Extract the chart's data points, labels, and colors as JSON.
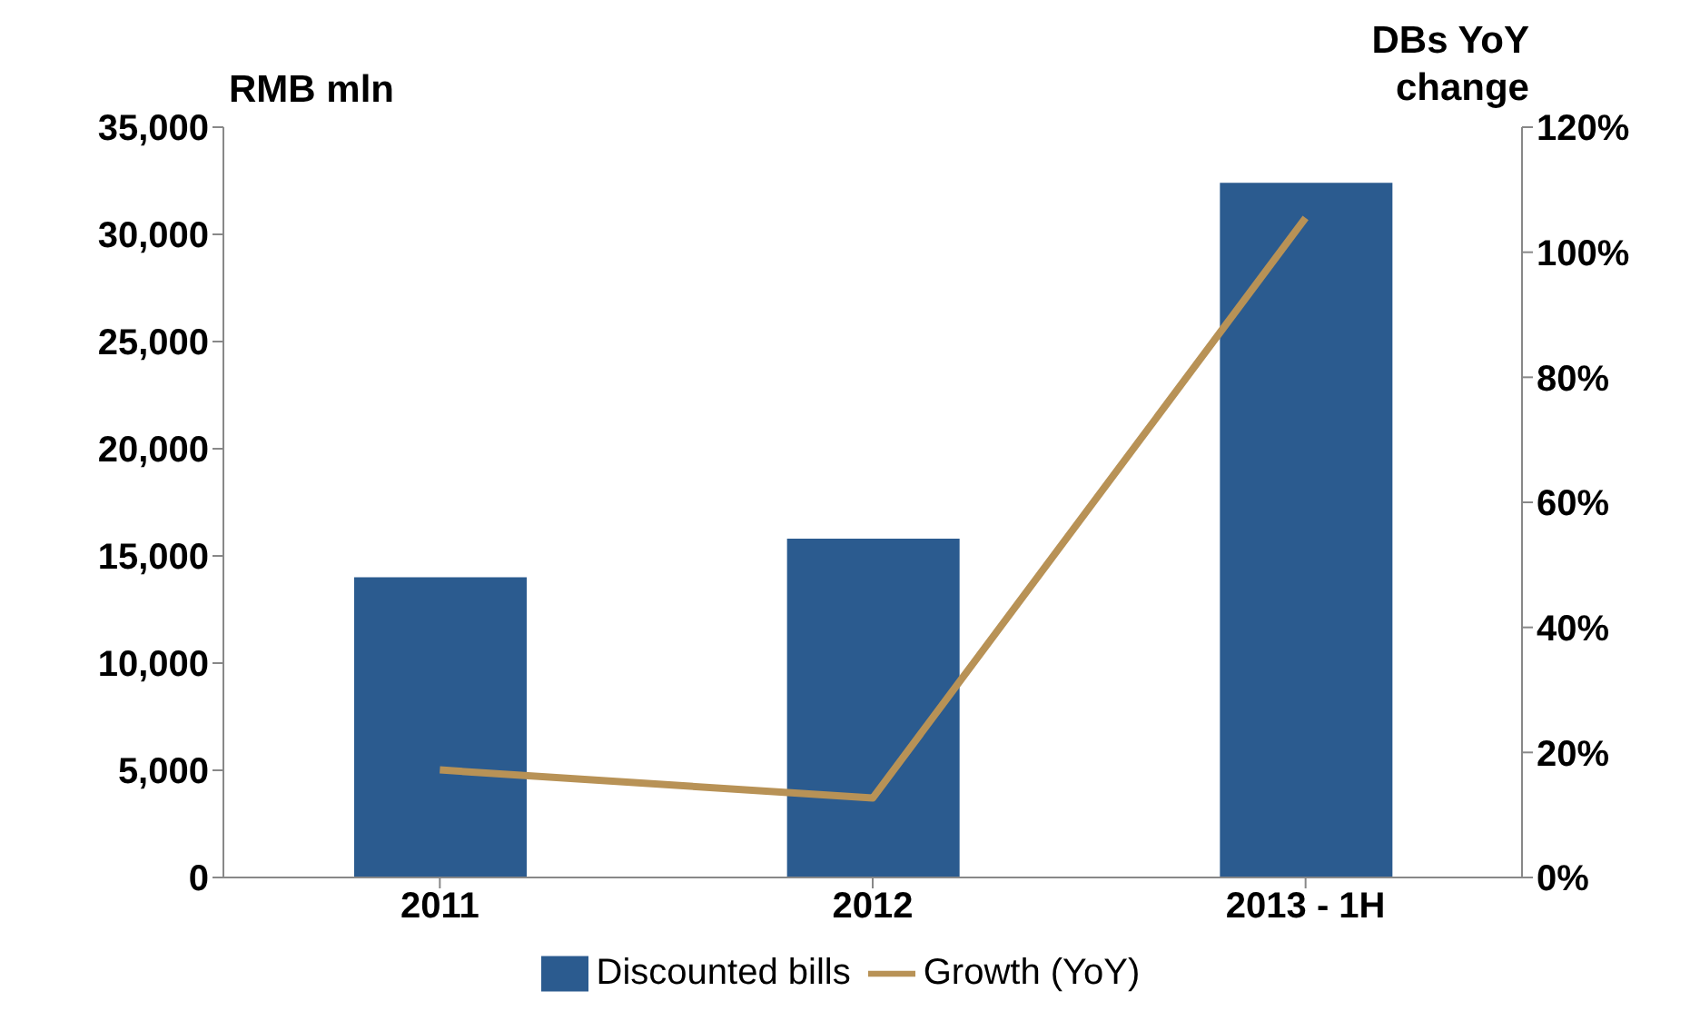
{
  "chart_data": {
    "type": "bar",
    "categories": [
      "2011",
      "2012",
      "2013 - 1H"
    ],
    "ylabel": "RMB mln",
    "y2label": "DBs YoY change",
    "series": [
      {
        "name": "Discounted bills",
        "color": "#2b5b8f",
        "values": [
          14000,
          15800,
          32400
        ]
      },
      {
        "name": "Growth (YoY)",
        "type": "line",
        "axis": "y2",
        "color": "#b89256",
        "values": [
          17.2,
          12.7,
          105.5
        ]
      }
    ],
    "ylim": [
      0,
      35000
    ],
    "yticks": [
      {
        "value": 0,
        "label": "0"
      },
      {
        "value": 5000,
        "label": "5,000"
      },
      {
        "value": 10000,
        "label": "10,000"
      },
      {
        "value": 15000,
        "label": "15,000"
      },
      {
        "value": 20000,
        "label": "20,000"
      },
      {
        "value": 25000,
        "label": "25,000"
      },
      {
        "value": 30000,
        "label": "30,000"
      },
      {
        "value": 35000,
        "label": "35,000"
      }
    ],
    "y2lim": [
      0,
      120
    ],
    "y2ticks": [
      {
        "value": 0,
        "label": "0%"
      },
      {
        "value": 20,
        "label": "20%"
      },
      {
        "value": 40,
        "label": "40%"
      },
      {
        "value": 60,
        "label": "60%"
      },
      {
        "value": 80,
        "label": "80%"
      },
      {
        "value": 100,
        "label": "100%"
      },
      {
        "value": 120,
        "label": "120%"
      }
    ],
    "legend": "bottom",
    "marker": "none"
  }
}
